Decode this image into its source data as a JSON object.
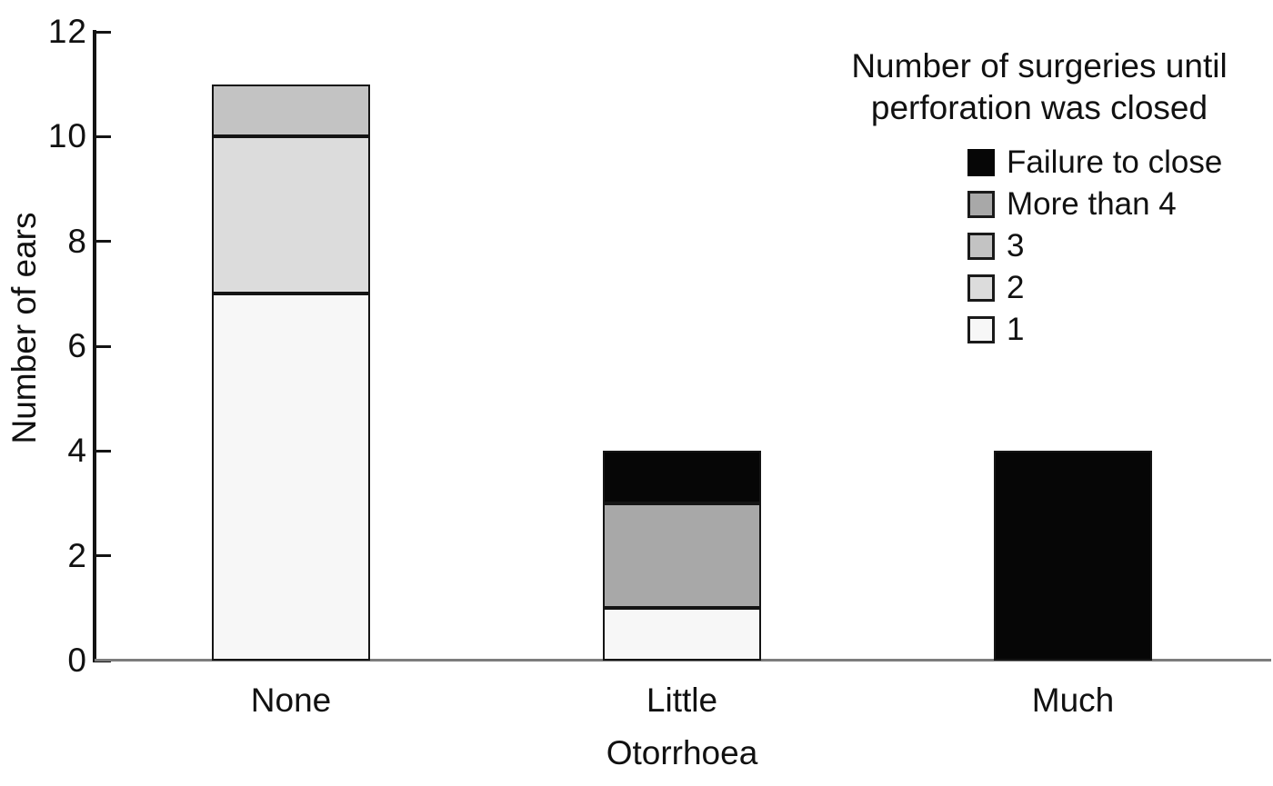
{
  "chart_data": {
    "type": "bar",
    "stacked": true,
    "title": "",
    "xlabel": "Otorrhoea",
    "ylabel": "Number of ears",
    "ylim": [
      0,
      12
    ],
    "yticks": [
      0,
      2,
      4,
      6,
      8,
      10,
      12
    ],
    "categories": [
      "None",
      "Little",
      "Much"
    ],
    "series": [
      {
        "name": "1",
        "color": "#f7f7f7",
        "values": [
          7,
          1,
          0
        ]
      },
      {
        "name": "2",
        "color": "#dcdcdc",
        "values": [
          3,
          0,
          0
        ]
      },
      {
        "name": "3",
        "color": "#c3c3c3",
        "values": [
          1,
          0,
          0
        ]
      },
      {
        "name": "More than 4",
        "color": "#a8a8a8",
        "values": [
          0,
          2,
          0
        ]
      },
      {
        "name": "Failure to close",
        "color": "#060606",
        "values": [
          0,
          1,
          4
        ]
      }
    ],
    "category_totals": [
      11,
      4,
      4
    ],
    "legend": {
      "title": "Number of surgeries until perforation was closed",
      "position": "top-right",
      "entries_top_to_bottom": [
        "Failure to close",
        "More than 4",
        "3",
        "2",
        "1"
      ]
    },
    "grid": false
  }
}
